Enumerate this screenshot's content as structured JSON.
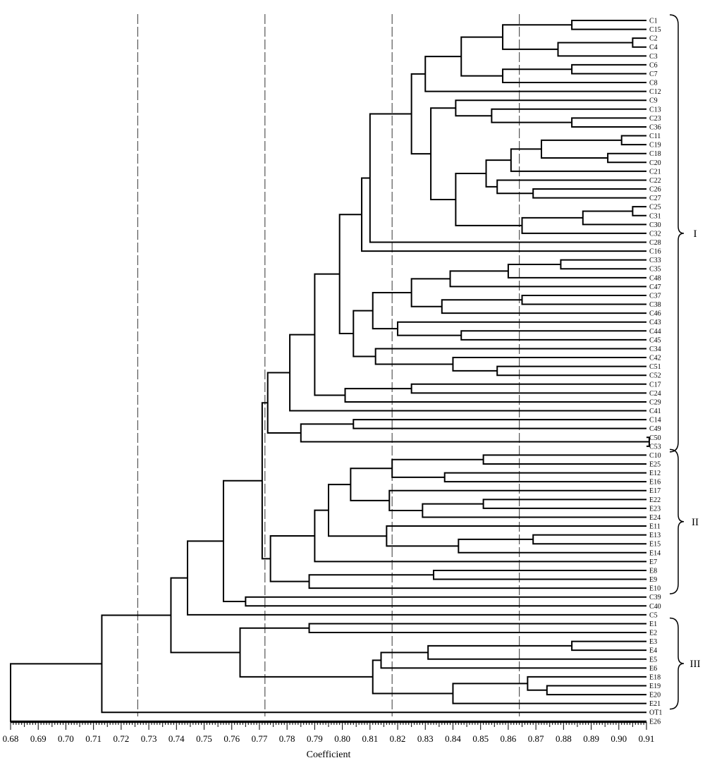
{
  "chart_data": {
    "type": "dendrogram",
    "xlabel": "Coefficient",
    "xlim": [
      0.68,
      0.91
    ],
    "x_ticks": [
      "0.68",
      "0.69",
      "0.70",
      "0.71",
      "0.72",
      "0.73",
      "0.74",
      "0.75",
      "0.76",
      "0.77",
      "0.78",
      "0.79",
      "0.80",
      "0.81",
      "0.82",
      "0.83",
      "0.84",
      "0.85",
      "0.86",
      "0.87",
      "0.88",
      "0.89",
      "0.90",
      "0.91"
    ],
    "reference_lines": [
      0.726,
      0.772,
      0.818,
      0.864
    ],
    "leaves": [
      "C1",
      "C15",
      "C2",
      "C4",
      "C3",
      "C6",
      "C7",
      "C8",
      "C12",
      "C9",
      "C13",
      "C23",
      "C36",
      "C11",
      "C19",
      "C18",
      "C20",
      "C21",
      "C22",
      "C26",
      "C27",
      "C25",
      "C31",
      "C30",
      "C32",
      "C28",
      "C16",
      "C33",
      "C35",
      "C48",
      "C47",
      "C37",
      "C38",
      "C46",
      "C43",
      "C44",
      "C45",
      "C34",
      "C42",
      "C51",
      "C52",
      "C17",
      "C24",
      "C29",
      "C41",
      "C14",
      "C49",
      "C50",
      "C53",
      "C10",
      "E25",
      "E12",
      "E16",
      "E17",
      "E22",
      "E23",
      "E24",
      "E11",
      "E13",
      "E15",
      "E14",
      "E7",
      "E8",
      "E9",
      "E10",
      "C39",
      "C40",
      "C5",
      "E1",
      "E2",
      "E3",
      "E4",
      "E5",
      "E6",
      "E18",
      "E19",
      "E20",
      "E21",
      "OT1",
      "E26"
    ],
    "groups": [
      {
        "label": "I",
        "from": 0,
        "to": 48
      },
      {
        "label": "II",
        "from": 49,
        "to": 64
      },
      {
        "label": "III",
        "from": 68,
        "to": 77
      }
    ],
    "merges": [
      {
        "h": 0.883,
        "a": "C1",
        "b": "C15"
      },
      {
        "h": 0.905,
        "a": "C2",
        "b": "C4"
      },
      {
        "h": 0.878,
        "a": "m1",
        "b": "C3"
      },
      {
        "h": 0.858,
        "a": "m0",
        "b": "m2"
      },
      {
        "h": 0.883,
        "a": "C6",
        "b": "C7"
      },
      {
        "h": 0.858,
        "a": "m4",
        "b": "C8"
      },
      {
        "h": 0.843,
        "a": "m3",
        "b": "m5"
      },
      {
        "h": 0.83,
        "a": "m6",
        "b": "C12"
      },
      {
        "h": 0.883,
        "a": "C23",
        "b": "C36"
      },
      {
        "h": 0.854,
        "a": "C13",
        "b": "m8"
      },
      {
        "h": 0.841,
        "a": "C9",
        "b": "m9"
      },
      {
        "h": 0.901,
        "a": "C11",
        "b": "C19"
      },
      {
        "h": 0.896,
        "a": "C18",
        "b": "C20"
      },
      {
        "h": 0.872,
        "a": "m11",
        "b": "m12"
      },
      {
        "h": 0.861,
        "a": "m13",
        "b": "C21"
      },
      {
        "h": 0.869,
        "a": "C26",
        "b": "C27"
      },
      {
        "h": 0.856,
        "a": "C22",
        "b": "m15"
      },
      {
        "h": 0.852,
        "a": "m14",
        "b": "m16"
      },
      {
        "h": 0.905,
        "a": "C25",
        "b": "C31"
      },
      {
        "h": 0.887,
        "a": "m18",
        "b": "C30"
      },
      {
        "h": 0.865,
        "a": "m19",
        "b": "C32"
      },
      {
        "h": 0.841,
        "a": "m17",
        "b": "m20"
      },
      {
        "h": 0.832,
        "a": "m10",
        "b": "m21"
      },
      {
        "h": 0.825,
        "a": "m7",
        "b": "m22"
      },
      {
        "h": 0.81,
        "a": "m23",
        "b": "C28"
      },
      {
        "h": 0.807,
        "a": "m24",
        "b": "C16"
      },
      {
        "h": 0.879,
        "a": "C33",
        "b": "C35"
      },
      {
        "h": 0.86,
        "a": "m26",
        "b": "C48"
      },
      {
        "h": 0.839,
        "a": "m27",
        "b": "C47"
      },
      {
        "h": 0.865,
        "a": "C37",
        "b": "C38"
      },
      {
        "h": 0.836,
        "a": "m29",
        "b": "C46"
      },
      {
        "h": 0.825,
        "a": "m28",
        "b": "m30"
      },
      {
        "h": 0.843,
        "a": "C44",
        "b": "C45"
      },
      {
        "h": 0.82,
        "a": "C43",
        "b": "m32"
      },
      {
        "h": 0.811,
        "a": "m31",
        "b": "m33"
      },
      {
        "h": 0.856,
        "a": "C51",
        "b": "C52"
      },
      {
        "h": 0.84,
        "a": "C42",
        "b": "m35"
      },
      {
        "h": 0.812,
        "a": "C34",
        "b": "m36"
      },
      {
        "h": 0.804,
        "a": "m34",
        "b": "m37"
      },
      {
        "h": 0.799,
        "a": "m25",
        "b": "m38"
      },
      {
        "h": 0.825,
        "a": "C17",
        "b": "C24"
      },
      {
        "h": 0.801,
        "a": "m40",
        "b": "C29"
      },
      {
        "h": 0.79,
        "a": "m39",
        "b": "m41"
      },
      {
        "h": 0.781,
        "a": "m42",
        "b": "C41"
      },
      {
        "h": 0.804,
        "a": "C14",
        "b": "C49"
      },
      {
        "h": 0.911,
        "a": "C50",
        "b": "C53"
      },
      {
        "h": 0.785,
        "a": "m44",
        "b": "m45"
      },
      {
        "h": 0.773,
        "a": "m43",
        "b": "m46"
      },
      {
        "h": 0.851,
        "a": "C10",
        "b": "E25"
      },
      {
        "h": 0.837,
        "a": "E12",
        "b": "E16"
      },
      {
        "h": 0.818,
        "a": "m48",
        "b": "m49"
      },
      {
        "h": 0.851,
        "a": "E22",
        "b": "E23"
      },
      {
        "h": 0.829,
        "a": "m51",
        "b": "E24"
      },
      {
        "h": 0.817,
        "a": "E17",
        "b": "m52"
      },
      {
        "h": 0.803,
        "a": "m50",
        "b": "m53"
      },
      {
        "h": 0.869,
        "a": "E13",
        "b": "E15"
      },
      {
        "h": 0.842,
        "a": "m55",
        "b": "E14"
      },
      {
        "h": 0.816,
        "a": "E11",
        "b": "m56"
      },
      {
        "h": 0.795,
        "a": "m54",
        "b": "m57"
      },
      {
        "h": 0.79,
        "a": "m58",
        "b": "E7"
      },
      {
        "h": 0.833,
        "a": "E8",
        "b": "E9"
      },
      {
        "h": 0.788,
        "a": "m60",
        "b": "E10"
      },
      {
        "h": 0.774,
        "a": "m59",
        "b": "m61"
      },
      {
        "h": 0.771,
        "a": "m47",
        "b": "m62"
      },
      {
        "h": 0.765,
        "a": "C39",
        "b": "C40"
      },
      {
        "h": 0.757,
        "a": "m63",
        "b": "m64"
      },
      {
        "h": 0.744,
        "a": "m65",
        "b": "C5"
      },
      {
        "h": 0.788,
        "a": "E1",
        "b": "E2"
      },
      {
        "h": 0.883,
        "a": "E3",
        "b": "E4"
      },
      {
        "h": 0.831,
        "a": "m68",
        "b": "E5"
      },
      {
        "h": 0.814,
        "a": "m69",
        "b": "E6"
      },
      {
        "h": 0.874,
        "a": "E19",
        "b": "E20"
      },
      {
        "h": 0.867,
        "a": "E18",
        "b": "m71"
      },
      {
        "h": 0.84,
        "a": "m72",
        "b": "E21"
      },
      {
        "h": 0.811,
        "a": "m70",
        "b": "m73"
      },
      {
        "h": 0.763,
        "a": "m67",
        "b": "m74"
      },
      {
        "h": 0.738,
        "a": "m66",
        "b": "m75"
      },
      {
        "h": 0.713,
        "a": "m76",
        "b": "OT1"
      },
      {
        "h": 0.68,
        "a": "m77",
        "b": "E26"
      }
    ]
  }
}
